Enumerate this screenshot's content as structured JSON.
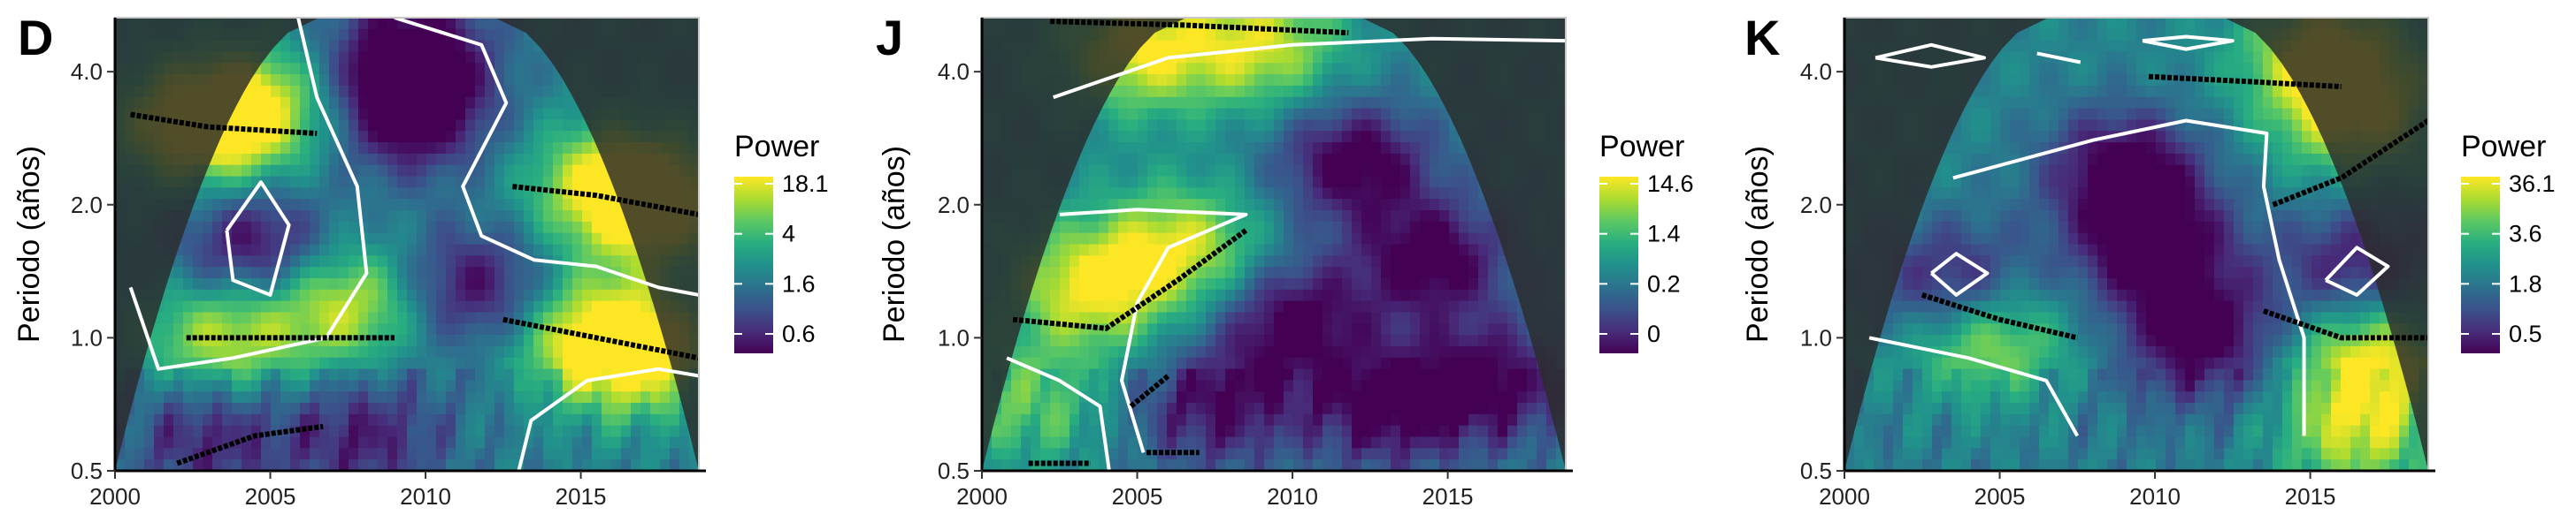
{
  "figure": {
    "colormap": [
      "#440154",
      "#472d7b",
      "#3b528b",
      "#2c728e",
      "#21918c",
      "#28ae80",
      "#5ec962",
      "#addc30",
      "#fde725"
    ],
    "contour_color": "#ffffff",
    "ridge_color": "#000000",
    "cone_shade_color": "#2b2b2b"
  },
  "chart_data": [
    {
      "panel": "D",
      "type": "heatmap",
      "xlabel": "",
      "ylabel": "Periodo (años)",
      "xlim": [
        2000,
        2018.8
      ],
      "ylim": [
        0.5,
        5.3
      ],
      "y_scale": "log2",
      "x_ticks": [
        "2000",
        "2005",
        "2010",
        "2015"
      ],
      "y_ticks": [
        "0.5",
        "1.0",
        "2.0",
        "4.0"
      ],
      "legend": {
        "title": "Power",
        "labels": [
          "18.1",
          "4",
          "1.6",
          "0.6"
        ],
        "position": "right"
      },
      "high_power": [
        {
          "x": 2002.5,
          "y": 3.0,
          "v": 0.95
        },
        {
          "x": 2004.5,
          "y": 3.3,
          "v": 0.9
        },
        {
          "x": 2007.5,
          "y": 1.2,
          "v": 0.9
        },
        {
          "x": 2003.5,
          "y": 1.0,
          "v": 0.85
        },
        {
          "x": 2016.0,
          "y": 2.2,
          "v": 0.9
        },
        {
          "x": 2017.5,
          "y": 2.0,
          "v": 0.85
        },
        {
          "x": 2015.5,
          "y": 1.0,
          "v": 0.95
        },
        {
          "x": 2017.0,
          "y": 0.9,
          "v": 0.8
        }
      ],
      "low_power": [
        {
          "x": 2009.5,
          "y": 3.2,
          "v": 0.95
        },
        {
          "x": 2009.5,
          "y": 4.5,
          "v": 0.9
        },
        {
          "x": 2004.5,
          "y": 1.6,
          "v": 0.85
        },
        {
          "x": 2011.5,
          "y": 1.3,
          "v": 0.8
        },
        {
          "x": 2008.0,
          "y": 0.6,
          "v": 0.6
        },
        {
          "x": 2003.0,
          "y": 0.6,
          "v": 0.6
        }
      ],
      "ridges": [
        [
          [
            2000.5,
            3.2
          ],
          [
            2003.0,
            3.0
          ],
          [
            2006.5,
            2.9
          ]
        ],
        [
          [
            2002.3,
            1.0
          ],
          [
            2005.5,
            1.0
          ],
          [
            2009.0,
            1.0
          ]
        ],
        [
          [
            2012.8,
            2.2
          ],
          [
            2015.5,
            2.1
          ],
          [
            2018.8,
            1.9
          ]
        ],
        [
          [
            2012.5,
            1.1
          ],
          [
            2015.5,
            1.0
          ],
          [
            2018.8,
            0.9
          ]
        ],
        [
          [
            2002.0,
            0.52
          ],
          [
            2004.5,
            0.6
          ],
          [
            2006.7,
            0.63
          ]
        ]
      ],
      "contours": [
        [
          [
            2005.9,
            5.3
          ],
          [
            2006.5,
            3.5
          ],
          [
            2007.8,
            2.2
          ],
          [
            2008.1,
            1.4
          ],
          [
            2006.8,
            1.0
          ],
          [
            2003.8,
            0.9
          ],
          [
            2001.4,
            0.85
          ],
          [
            2000.5,
            1.3
          ]
        ],
        [
          [
            2009.0,
            5.3
          ],
          [
            2011.8,
            4.6
          ],
          [
            2012.6,
            3.4
          ],
          [
            2011.2,
            2.2
          ],
          [
            2011.8,
            1.7
          ],
          [
            2013.5,
            1.5
          ],
          [
            2015.5,
            1.45
          ],
          [
            2017.5,
            1.3
          ],
          [
            2018.8,
            1.25
          ]
        ],
        [
          [
            2013.0,
            0.5
          ],
          [
            2013.4,
            0.65
          ],
          [
            2015.2,
            0.8
          ],
          [
            2017.5,
            0.85
          ],
          [
            2018.8,
            0.82
          ]
        ],
        [
          [
            2003.6,
            1.75
          ],
          [
            2004.7,
            2.25
          ],
          [
            2005.6,
            1.8
          ],
          [
            2005.0,
            1.25
          ],
          [
            2003.8,
            1.35
          ],
          [
            2003.6,
            1.75
          ]
        ]
      ]
    },
    {
      "panel": "J",
      "type": "heatmap",
      "xlabel": "",
      "ylabel": "Periodo (años)",
      "xlim": [
        2000,
        2018.8
      ],
      "ylim": [
        0.5,
        5.3
      ],
      "y_scale": "log2",
      "x_ticks": [
        "2000",
        "2005",
        "2010",
        "2015"
      ],
      "y_ticks": [
        "0.5",
        "1.0",
        "2.0",
        "4.0"
      ],
      "legend": {
        "title": "Power",
        "labels": [
          "14.6",
          "1.4",
          "0.2",
          "0"
        ],
        "position": "right"
      },
      "high_power": [
        {
          "x": 2005.0,
          "y": 4.5,
          "v": 0.95
        },
        {
          "x": 2009.0,
          "y": 4.6,
          "v": 0.85
        },
        {
          "x": 2003.5,
          "y": 1.3,
          "v": 0.95
        },
        {
          "x": 2006.5,
          "y": 1.6,
          "v": 0.85
        },
        {
          "x": 2001.5,
          "y": 0.7,
          "v": 0.6
        }
      ],
      "low_power": [
        {
          "x": 2012.0,
          "y": 2.5,
          "v": 0.9
        },
        {
          "x": 2014.5,
          "y": 1.5,
          "v": 0.9
        },
        {
          "x": 2010.0,
          "y": 1.1,
          "v": 0.85
        },
        {
          "x": 2013.0,
          "y": 0.7,
          "v": 0.8
        },
        {
          "x": 2016.5,
          "y": 0.8,
          "v": 0.8
        },
        {
          "x": 2007.5,
          "y": 0.7,
          "v": 0.7
        }
      ],
      "ridges": [
        [
          [
            2002.2,
            5.2
          ],
          [
            2006.5,
            5.1
          ],
          [
            2011.8,
            4.9
          ]
        ],
        [
          [
            2001.0,
            1.1
          ],
          [
            2004.0,
            1.05
          ],
          [
            2006.3,
            1.35
          ],
          [
            2008.5,
            1.75
          ]
        ],
        [
          [
            2001.5,
            0.52
          ],
          [
            2003.5,
            0.52
          ]
        ],
        [
          [
            2005.3,
            0.55
          ],
          [
            2007.0,
            0.55
          ]
        ],
        [
          [
            2004.8,
            0.7
          ],
          [
            2006.0,
            0.82
          ]
        ]
      ],
      "contours": [
        [
          [
            2002.3,
            3.5
          ],
          [
            2006.0,
            4.3
          ],
          [
            2010.0,
            4.6
          ],
          [
            2014.5,
            4.75
          ],
          [
            2018.8,
            4.7
          ]
        ],
        [
          [
            2002.5,
            1.9
          ],
          [
            2005.0,
            1.95
          ],
          [
            2008.5,
            1.9
          ],
          [
            2006.0,
            1.6
          ],
          [
            2005.0,
            1.2
          ],
          [
            2004.5,
            0.8
          ],
          [
            2005.2,
            0.55
          ]
        ],
        [
          [
            2000.8,
            0.9
          ],
          [
            2002.5,
            0.8
          ],
          [
            2003.8,
            0.7
          ],
          [
            2004.1,
            0.5
          ]
        ]
      ]
    },
    {
      "panel": "K",
      "type": "heatmap",
      "xlabel": "",
      "ylabel": "Periodo (años)",
      "xlim": [
        2000,
        2018.8
      ],
      "ylim": [
        0.5,
        5.3
      ],
      "y_scale": "log2",
      "x_ticks": [
        "2000",
        "2005",
        "2010",
        "2015"
      ],
      "y_ticks": [
        "0.5",
        "1.0",
        "2.0",
        "4.0"
      ],
      "legend": {
        "title": "Power",
        "labels": [
          "36.1",
          "3.6",
          "1.8",
          "0.5"
        ],
        "position": "right"
      },
      "high_power": [
        {
          "x": 2015.5,
          "y": 4.4,
          "v": 0.95
        },
        {
          "x": 2016.5,
          "y": 3.2,
          "v": 0.9
        },
        {
          "x": 2004.5,
          "y": 1.0,
          "v": 0.85
        },
        {
          "x": 2017.0,
          "y": 0.9,
          "v": 0.95
        },
        {
          "x": 2016.5,
          "y": 0.6,
          "v": 0.8
        }
      ],
      "low_power": [
        {
          "x": 2010.0,
          "y": 1.6,
          "v": 0.95
        },
        {
          "x": 2011.5,
          "y": 1.0,
          "v": 0.9
        },
        {
          "x": 2009.0,
          "y": 2.4,
          "v": 0.9
        },
        {
          "x": 2003.5,
          "y": 1.3,
          "v": 0.8
        },
        {
          "x": 2016.5,
          "y": 1.45,
          "v": 0.7
        }
      ],
      "ridges": [
        [
          [
            2009.8,
            3.9
          ],
          [
            2013.0,
            3.8
          ],
          [
            2016.0,
            3.7
          ]
        ],
        [
          [
            2013.8,
            2.0
          ],
          [
            2016.0,
            2.3
          ],
          [
            2018.8,
            3.1
          ]
        ],
        [
          [
            2002.5,
            1.25
          ],
          [
            2005.0,
            1.1
          ],
          [
            2007.5,
            1.0
          ]
        ],
        [
          [
            2013.5,
            1.15
          ],
          [
            2016.0,
            1.0
          ],
          [
            2018.8,
            1.0
          ]
        ]
      ],
      "contours": [
        [
          [
            2006.2,
            4.4
          ],
          [
            2007.6,
            4.2
          ]
        ],
        [
          [
            2009.6,
            4.7
          ],
          [
            2011.0,
            4.8
          ],
          [
            2012.5,
            4.7
          ],
          [
            2011.0,
            4.5
          ],
          [
            2009.6,
            4.7
          ]
        ],
        [
          [
            2001.0,
            4.3
          ],
          [
            2002.8,
            4.6
          ],
          [
            2004.5,
            4.3
          ],
          [
            2002.8,
            4.1
          ],
          [
            2001.0,
            4.3
          ]
        ],
        [
          [
            2003.5,
            2.3
          ],
          [
            2008.0,
            2.8
          ],
          [
            2011.0,
            3.1
          ],
          [
            2013.6,
            2.9
          ],
          [
            2013.5,
            2.2
          ],
          [
            2014.0,
            1.5
          ],
          [
            2014.8,
            1.0
          ],
          [
            2014.8,
            0.6
          ]
        ],
        [
          [
            2002.8,
            1.4
          ],
          [
            2003.6,
            1.55
          ],
          [
            2004.6,
            1.4
          ],
          [
            2003.6,
            1.25
          ],
          [
            2002.8,
            1.4
          ]
        ],
        [
          [
            2015.5,
            1.35
          ],
          [
            2016.5,
            1.6
          ],
          [
            2017.5,
            1.45
          ],
          [
            2016.5,
            1.25
          ],
          [
            2015.5,
            1.35
          ]
        ],
        [
          [
            2000.8,
            1.0
          ],
          [
            2004.0,
            0.9
          ],
          [
            2006.5,
            0.8
          ],
          [
            2007.5,
            0.6
          ]
        ]
      ]
    }
  ]
}
